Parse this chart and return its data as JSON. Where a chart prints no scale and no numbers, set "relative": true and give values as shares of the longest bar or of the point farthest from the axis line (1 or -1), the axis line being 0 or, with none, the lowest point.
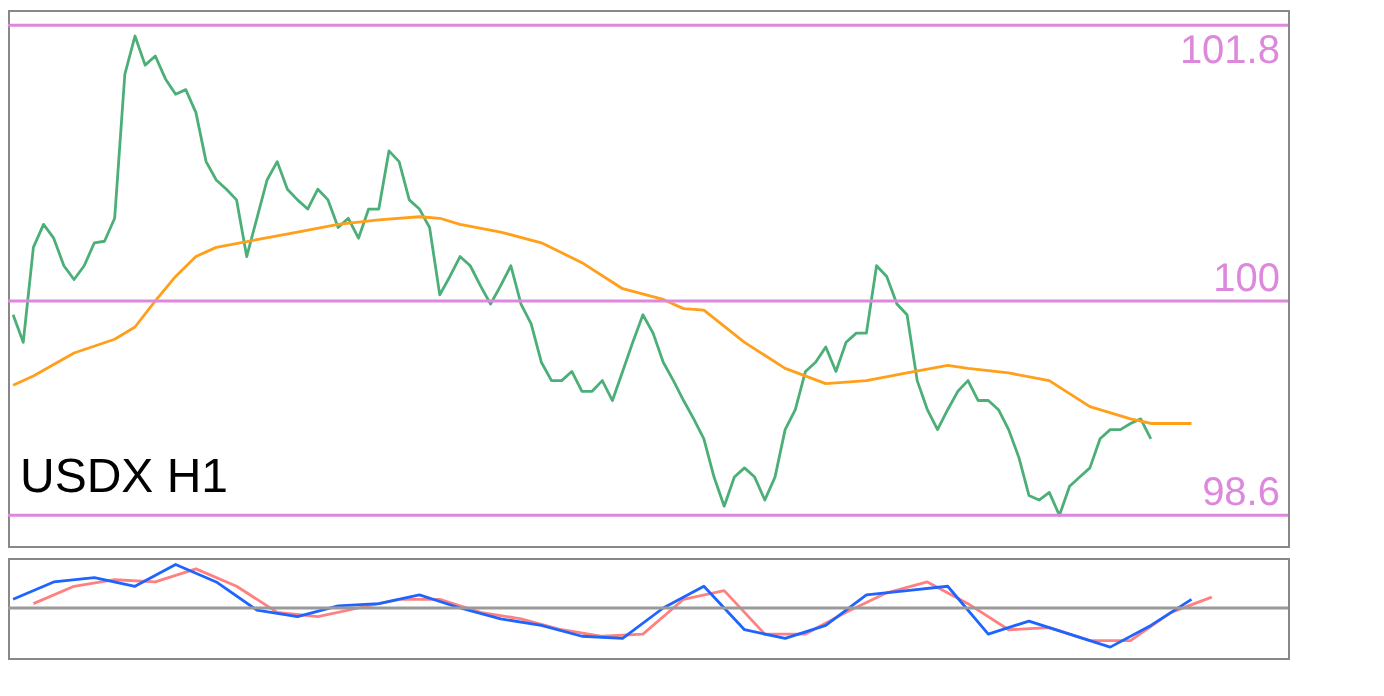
{
  "chart_data": [
    {
      "type": "line",
      "annotations": [
        "USDX H1"
      ],
      "categories": [
        null,
        null,
        null,
        null,
        null,
        null,
        null,
        null,
        null,
        null,
        null,
        null,
        null,
        null,
        null,
        null,
        null,
        null,
        null,
        null,
        null,
        null,
        null,
        null,
        null,
        null,
        null,
        null,
        null,
        null,
        null,
        null,
        null,
        null,
        null,
        null,
        null,
        null,
        null,
        null,
        null,
        null,
        null,
        null,
        null,
        null,
        null,
        null,
        null,
        null,
        null,
        null,
        null,
        null,
        null,
        null,
        null,
        null,
        null,
        null,
        null,
        null,
        null,
        null,
        null,
        null,
        null,
        null,
        null,
        null,
        null,
        null,
        null,
        null,
        null,
        null,
        null,
        null,
        null,
        null,
        null,
        null,
        null,
        null,
        null,
        null,
        null,
        null,
        null,
        null,
        null,
        null,
        null,
        null,
        null,
        null,
        null,
        null,
        null,
        null,
        null,
        null,
        null,
        null,
        null,
        null,
        null,
        null,
        null,
        null,
        null,
        null,
        null,
        null,
        null,
        null,
        null,
        null,
        null,
        null,
        null,
        null,
        null,
        null,
        null,
        null
      ],
      "ylim": [
        98.4,
        101.9
      ],
      "tick_labels": false,
      "grid": false,
      "series": [
        {
          "color": "#4caf78",
          "values": [
            99.91,
            99.73,
            100.35,
            100.5,
            100.41,
            100.23,
            100.14,
            100.23,
            100.38,
            100.39,
            100.54,
            101.48,
            101.73,
            101.54,
            101.6,
            101.45,
            101.35,
            101.38,
            101.23,
            100.91,
            100.79,
            100.73,
            100.66,
            100.29,
            100.54,
            100.79,
            100.91,
            100.73,
            100.66,
            100.6,
            100.73,
            100.66,
            100.48,
            100.54,
            100.41,
            100.6,
            100.6,
            100.98,
            100.91,
            100.66,
            100.6,
            100.48,
            100.04,
            100.16,
            100.29,
            100.23,
            100.1,
            99.98,
            100.1,
            100.23,
            99.98,
            99.85,
            99.6,
            99.48,
            99.48,
            99.54,
            99.41,
            99.41,
            99.48,
            99.35,
            99.54,
            99.73,
            99.91,
            99.79,
            99.6,
            99.48,
            99.35,
            99.23,
            99.1,
            98.85,
            98.66,
            98.85,
            98.91,
            98.85,
            98.7,
            98.85,
            99.16,
            99.29,
            99.54,
            99.6,
            99.7,
            99.54,
            99.73,
            99.79,
            99.79,
            100.23,
            100.16,
            99.98,
            99.91,
            99.48,
            99.29,
            99.16,
            99.29,
            99.41,
            99.48,
            99.35,
            99.35,
            99.29,
            99.16,
            98.98,
            98.73,
            98.7,
            98.75,
            98.6,
            98.79,
            98.85,
            98.91,
            99.1,
            99.16,
            99.16,
            99.2,
            99.23,
            99.1,
            null,
            null,
            null,
            null,
            null,
            null,
            null,
            null,
            null,
            null,
            null,
            null,
            null
          ]
        },
        {
          "color": "#ff9f1a",
          "values": [
            99.45,
            null,
            99.51,
            null,
            null,
            null,
            99.66,
            null,
            null,
            null,
            99.75,
            null,
            99.83,
            null,
            100.0,
            null,
            100.16,
            null,
            100.29,
            null,
            100.35,
            null,
            null,
            null,
            100.4,
            null,
            null,
            null,
            100.45,
            null,
            null,
            null,
            100.5,
            null,
            null,
            null,
            100.53,
            null,
            null,
            null,
            100.55,
            null,
            100.54,
            null,
            100.5,
            null,
            null,
            null,
            100.45,
            null,
            null,
            null,
            100.38,
            null,
            null,
            null,
            100.25,
            null,
            null,
            null,
            100.08,
            null,
            null,
            null,
            100.01,
            null,
            99.95,
            null,
            99.94,
            null,
            null,
            null,
            99.73,
            null,
            null,
            null,
            99.56,
            null,
            null,
            null,
            99.46,
            null,
            null,
            null,
            99.48,
            null,
            null,
            null,
            99.53,
            null,
            null,
            null,
            99.58,
            null,
            99.56,
            null,
            null,
            null,
            99.53,
            null,
            null,
            null,
            99.48,
            null,
            null,
            null,
            99.31,
            null,
            null,
            null,
            99.23,
            null,
            99.2,
            null,
            null,
            null,
            99.2,
            null,
            null,
            null,
            null,
            null,
            null,
            null,
            null,
            null
          ]
        }
      ],
      "ref_lines": [
        {
          "axis": "y",
          "value": 101.8,
          "label": "101.8",
          "color": "#dd88dd"
        },
        {
          "axis": "y",
          "value": 100,
          "label": "100",
          "color": "#dd88dd"
        },
        {
          "axis": "y",
          "value": 98.6,
          "label": "98.6",
          "color": "#dd88dd"
        }
      ]
    },
    {
      "type": "line",
      "relative": true,
      "tick_labels": false,
      "grid": false,
      "categories": [
        null,
        null,
        null,
        null,
        null,
        null,
        null,
        null,
        null,
        null,
        null,
        null,
        null,
        null,
        null,
        null,
        null,
        null,
        null,
        null,
        null,
        null,
        null,
        null,
        null,
        null,
        null,
        null,
        null,
        null,
        null,
        null,
        null,
        null,
        null,
        null,
        null,
        null,
        null,
        null,
        null,
        null,
        null,
        null,
        null,
        null,
        null,
        null,
        null,
        null,
        null,
        null,
        null,
        null,
        null,
        null,
        null,
        null,
        null,
        null,
        null,
        null,
        null,
        null,
        null,
        null,
        null,
        null,
        null,
        null,
        null,
        null,
        null,
        null,
        null,
        null,
        null,
        null,
        null,
        null,
        null,
        null,
        null,
        null,
        null,
        null,
        null,
        null,
        null,
        null,
        null,
        null,
        null,
        null,
        null,
        null,
        null,
        null,
        null,
        null,
        null,
        null,
        null,
        null,
        null,
        null,
        null,
        null,
        null,
        null,
        null,
        null,
        null,
        null,
        null,
        null,
        null,
        null,
        null,
        null,
        null,
        null,
        null,
        null,
        null,
        null
      ],
      "series": [
        {
          "color": "#ff8080",
          "values": [
            null,
            null,
            0.1,
            null,
            null,
            null,
            0.5,
            null,
            null,
            null,
            0.65,
            null,
            null,
            null,
            0.6,
            null,
            null,
            null,
            0.9,
            null,
            null,
            null,
            0.5,
            null,
            null,
            null,
            -0.1,
            null,
            null,
            null,
            -0.2,
            null,
            null,
            null,
            0.0,
            null,
            null,
            null,
            0.2,
            null,
            null,
            null,
            0.2,
            null,
            null,
            null,
            -0.1,
            null,
            null,
            null,
            -0.25,
            null,
            null,
            null,
            -0.5,
            null,
            null,
            null,
            -0.65,
            null,
            null,
            null,
            -0.6,
            null,
            null,
            null,
            0.2,
            null,
            null,
            null,
            0.4,
            null,
            null,
            null,
            -0.6,
            null,
            null,
            null,
            -0.6,
            null,
            null,
            null,
            -0.1,
            null,
            null,
            null,
            0.35,
            null,
            null,
            null,
            0.6,
            null,
            null,
            null,
            0.1,
            null,
            null,
            null,
            -0.5,
            null,
            null,
            null,
            -0.45,
            null,
            null,
            null,
            -0.75,
            null,
            null,
            null,
            -0.75,
            null,
            null,
            null,
            -0.1,
            null,
            null,
            null,
            0.25,
            null,
            null,
            null,
            null,
            null,
            null,
            null
          ]
        },
        {
          "color": "#1e64ff",
          "values": [
            0.2,
            null,
            null,
            null,
            0.6,
            null,
            null,
            null,
            0.7,
            null,
            null,
            null,
            0.5,
            null,
            null,
            null,
            1.0,
            null,
            null,
            null,
            0.6,
            null,
            null,
            null,
            -0.05,
            null,
            null,
            null,
            -0.2,
            null,
            null,
            null,
            0.05,
            null,
            null,
            null,
            0.1,
            null,
            null,
            null,
            0.3,
            null,
            null,
            null,
            0.0,
            null,
            null,
            null,
            -0.25,
            null,
            null,
            null,
            -0.4,
            null,
            null,
            null,
            -0.65,
            null,
            null,
            null,
            -0.7,
            null,
            null,
            null,
            0.0,
            null,
            null,
            null,
            0.5,
            null,
            null,
            null,
            -0.5,
            null,
            null,
            null,
            -0.7,
            null,
            null,
            null,
            -0.4,
            null,
            null,
            null,
            0.3,
            null,
            null,
            null,
            0.4,
            null,
            null,
            null,
            0.5,
            null,
            null,
            null,
            -0.6,
            null,
            null,
            null,
            -0.3,
            null,
            null,
            null,
            -0.6,
            null,
            null,
            null,
            -0.9,
            null,
            null,
            null,
            -0.4,
            null,
            null,
            null,
            0.2,
            null,
            null,
            null,
            null,
            null,
            null,
            null,
            null,
            null
          ]
        }
      ],
      "ref_lines": [
        {
          "axis": "y",
          "value": 0,
          "color": "#9a9a9a"
        }
      ]
    }
  ]
}
